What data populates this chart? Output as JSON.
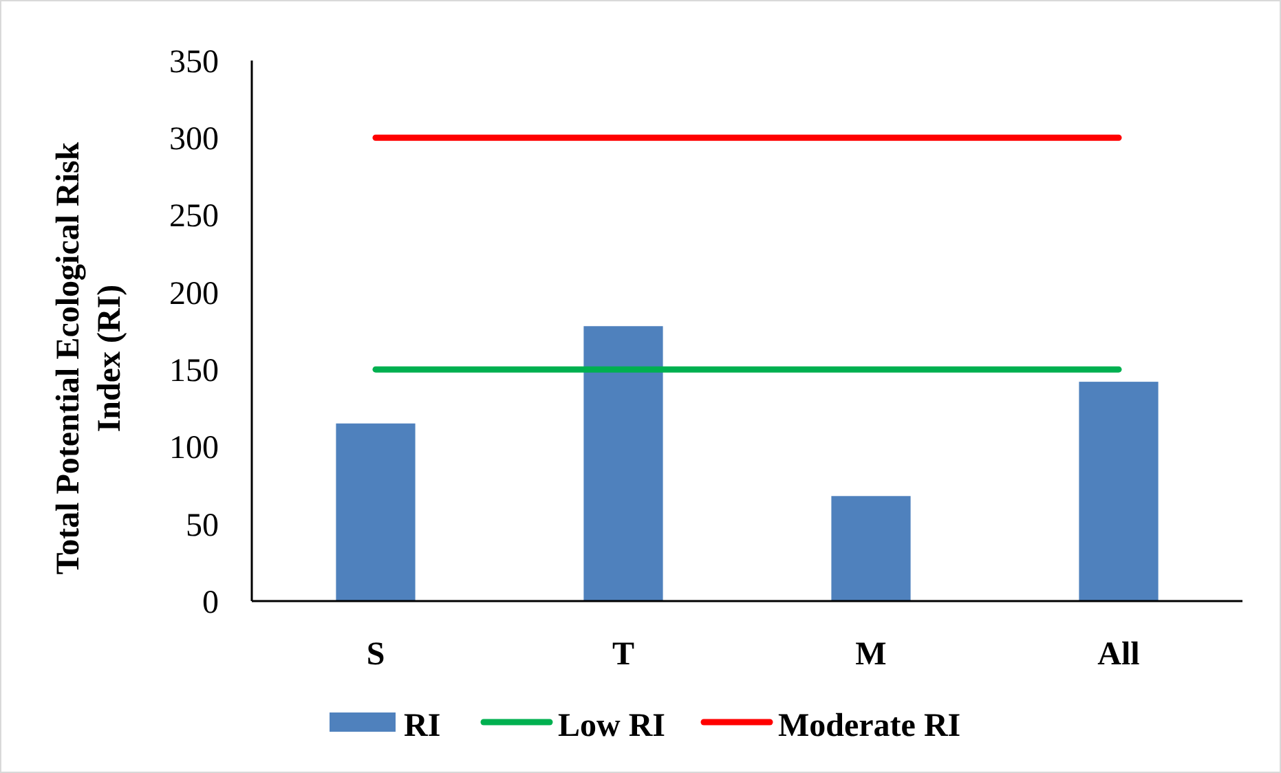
{
  "chart_data": {
    "type": "bar",
    "ylabel": "Total Potential Ecological Risk Index (RI)",
    "categories": [
      "S",
      "T",
      "M",
      "All"
    ],
    "series": [
      {
        "name": "RI",
        "color": "#4f81bd",
        "values": [
          115,
          178,
          68,
          142
        ]
      },
      {
        "name": "Low RI",
        "type": "line",
        "color": "#00b050",
        "values": [
          150,
          150,
          150,
          150
        ]
      },
      {
        "name": "Moderate RI",
        "type": "line",
        "color": "#ff0000",
        "values": [
          300,
          300,
          300,
          300
        ]
      }
    ],
    "ylim": [
      0,
      350
    ],
    "yticks": [
      0,
      50,
      100,
      150,
      200,
      250,
      300,
      350
    ],
    "grid": false,
    "legend": "bottom"
  }
}
